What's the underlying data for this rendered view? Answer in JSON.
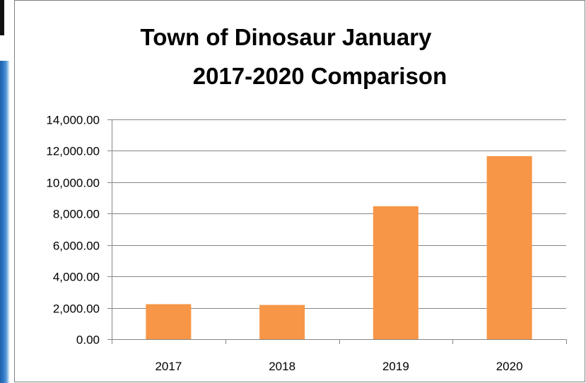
{
  "chart_data": {
    "type": "bar",
    "title": "Town of Dinosaur January 2017-2020 Comparison",
    "title_lines": [
      "Town of Dinosaur January",
      "2017-2020 Comparison"
    ],
    "categories": [
      "2017",
      "2018",
      "2019",
      "2020"
    ],
    "values": [
      2230,
      2180,
      8470,
      11660
    ],
    "ylim": [
      0,
      14000
    ],
    "yticks": [
      0,
      2000,
      4000,
      6000,
      8000,
      10000,
      12000,
      14000
    ],
    "ytick_labels": [
      "0.00",
      "2,000.00",
      "4,000.00",
      "6,000.00",
      "8,000.00",
      "10,000.00",
      "12,000.00",
      "14,000.00"
    ],
    "xlabel": "",
    "ylabel": "",
    "grid": "horizontal",
    "legend": "none",
    "bar_color": "#F79646",
    "gridline_color": "#868686"
  }
}
